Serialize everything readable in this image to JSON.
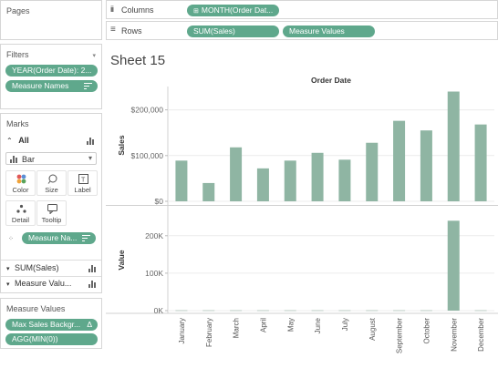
{
  "left_panel": {
    "pages": {
      "title": "Pages"
    },
    "filters": {
      "title": "Filters",
      "pills": [
        "YEAR(Order Date): 2...",
        "Measure Names"
      ]
    },
    "marks": {
      "title": "Marks",
      "all_label": "All",
      "mark_type": "Bar",
      "cards": [
        "Color",
        "Size",
        "Label",
        "Detail",
        "Tooltip"
      ],
      "measure_pill": "Measure Na...",
      "sections": [
        "SUM(Sales)",
        "Measure Valu..."
      ]
    },
    "measure_values": {
      "title": "Measure Values",
      "pills": [
        "Max Sales Backgr...",
        "AGG(MIN(0))"
      ],
      "delta": "Δ"
    }
  },
  "shelves": {
    "columns_label": "Columns",
    "columns_pill": "MONTH(Order Dat...",
    "rows_label": "Rows",
    "rows_pills": [
      "SUM(Sales)",
      "Measure Values"
    ]
  },
  "sheet": {
    "title": "Sheet 15"
  },
  "colors": {
    "pill": "#5fa88c",
    "bar": "#8fb5a3"
  },
  "chart_data": {
    "type": "bar",
    "title": "Order Date",
    "categories": [
      "January",
      "February",
      "March",
      "April",
      "May",
      "June",
      "July",
      "August",
      "September",
      "October",
      "November",
      "December"
    ],
    "panes": [
      {
        "ylabel": "Sales",
        "ylim": [
          0,
          245000
        ],
        "ticks": [
          {
            "v": 0,
            "t": "$0"
          },
          {
            "v": 100000,
            "t": "$100,000"
          },
          {
            "v": 200000,
            "t": "$200,000"
          }
        ],
        "values": [
          89000,
          40000,
          118000,
          72000,
          89000,
          106000,
          91000,
          128000,
          176000,
          155000,
          240000,
          168000
        ]
      },
      {
        "ylabel": "Value",
        "ylim": [
          0,
          270000
        ],
        "ticks": [
          {
            "v": 0,
            "t": "0K"
          },
          {
            "v": 100000,
            "t": "100K"
          },
          {
            "v": 200000,
            "t": "200K"
          }
        ],
        "values": [
          0,
          0,
          0,
          0,
          0,
          0,
          0,
          0,
          0,
          0,
          240000,
          0
        ]
      }
    ]
  }
}
